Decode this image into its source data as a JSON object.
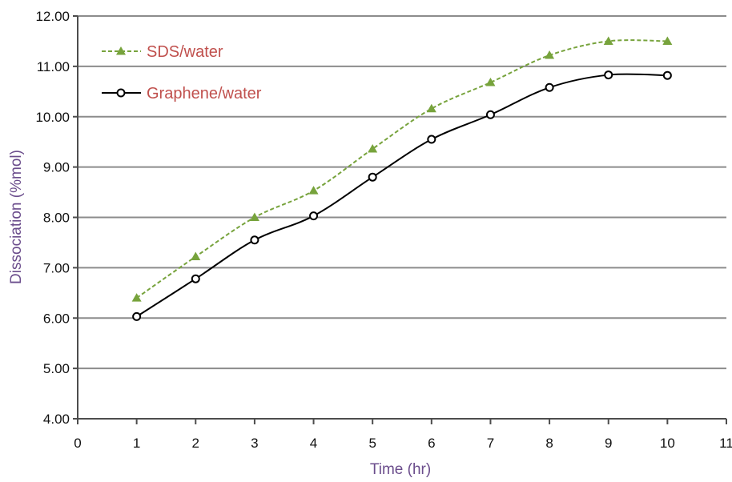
{
  "colors": {
    "axis_title": "#6b4d8c",
    "legend_text": "#c0504d",
    "gridline": "#8c8c8c",
    "axis": "#4d4d4d",
    "sds_series": "#77a33c",
    "graphene_series": "#000000"
  },
  "chart_data": {
    "type": "line",
    "title": "",
    "xlabel": "Time (hr)",
    "ylabel": "Dissociation (%mol)",
    "xlim": [
      0,
      11
    ],
    "ylim": [
      4,
      12
    ],
    "x_ticks": [
      "0",
      "1",
      "2",
      "3",
      "4",
      "5",
      "6",
      "7",
      "8",
      "9",
      "10",
      "11"
    ],
    "y_ticks": [
      "4.00",
      "5.00",
      "6.00",
      "7.00",
      "8.00",
      "9.00",
      "10.00",
      "11.00",
      "12.00"
    ],
    "grid": "horizontal",
    "legend_position": "top-left",
    "series": [
      {
        "name": "SDS/water",
        "line_style": "dashed",
        "marker": "triangle",
        "x": [
          1,
          2,
          3,
          4,
          5,
          6,
          7,
          8,
          9,
          10
        ],
        "values": [
          6.4,
          7.22,
          8.0,
          8.53,
          9.36,
          10.16,
          10.68,
          11.22,
          11.5,
          11.5
        ]
      },
      {
        "name": "Graphene/water",
        "line_style": "solid",
        "marker": "circle",
        "x": [
          1,
          2,
          3,
          4,
          5,
          6,
          7,
          8,
          9,
          10
        ],
        "values": [
          6.03,
          6.78,
          7.55,
          8.03,
          8.8,
          9.55,
          10.04,
          10.58,
          10.83,
          10.82
        ]
      }
    ]
  }
}
